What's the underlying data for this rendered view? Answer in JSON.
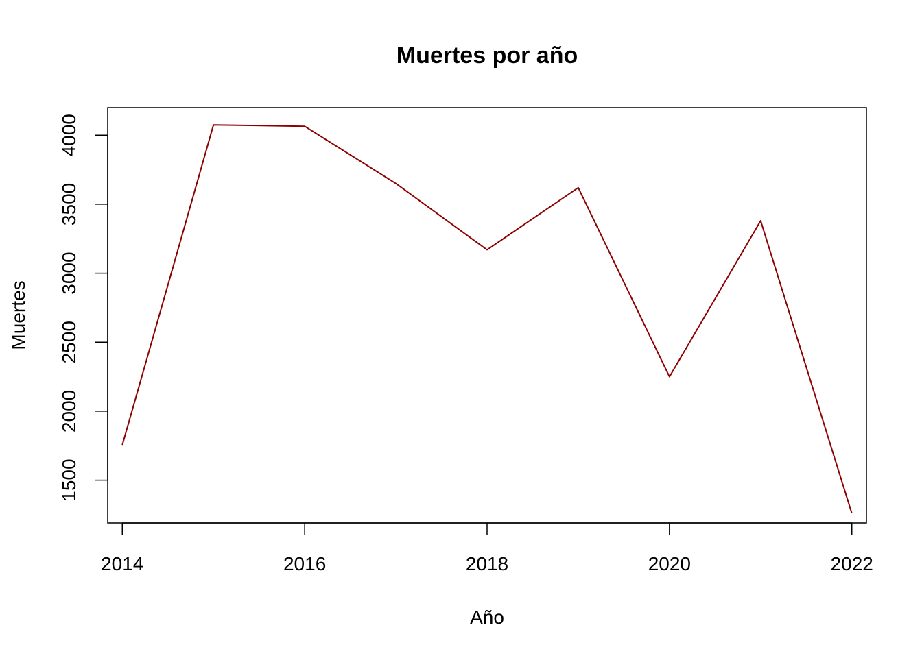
{
  "chart_data": {
    "type": "line",
    "title": "Muertes por año",
    "xlabel": "Año",
    "ylabel": "Muertes",
    "x": [
      2014,
      2015,
      2016,
      2017,
      2018,
      2019,
      2020,
      2021,
      2022
    ],
    "series": [
      {
        "values": [
          1755,
          4075,
          4065,
          3650,
          3170,
          3620,
          2250,
          3380,
          1260
        ],
        "color": "#8b0000"
      }
    ],
    "xlim": [
      2013.84,
      2022.16
    ],
    "ylim": [
      1190,
      4200
    ],
    "xticks": [
      2014,
      2016,
      2018,
      2020,
      2022
    ],
    "xtick_labels": [
      "2014",
      "2016",
      "2018",
      "2020",
      "2022"
    ],
    "yticks": [
      1500,
      2000,
      2500,
      3000,
      3500,
      4000
    ],
    "ytick_labels": [
      "1500",
      "2000",
      "2500",
      "3000",
      "3500",
      "4000"
    ],
    "grid": false,
    "legend": "none"
  }
}
